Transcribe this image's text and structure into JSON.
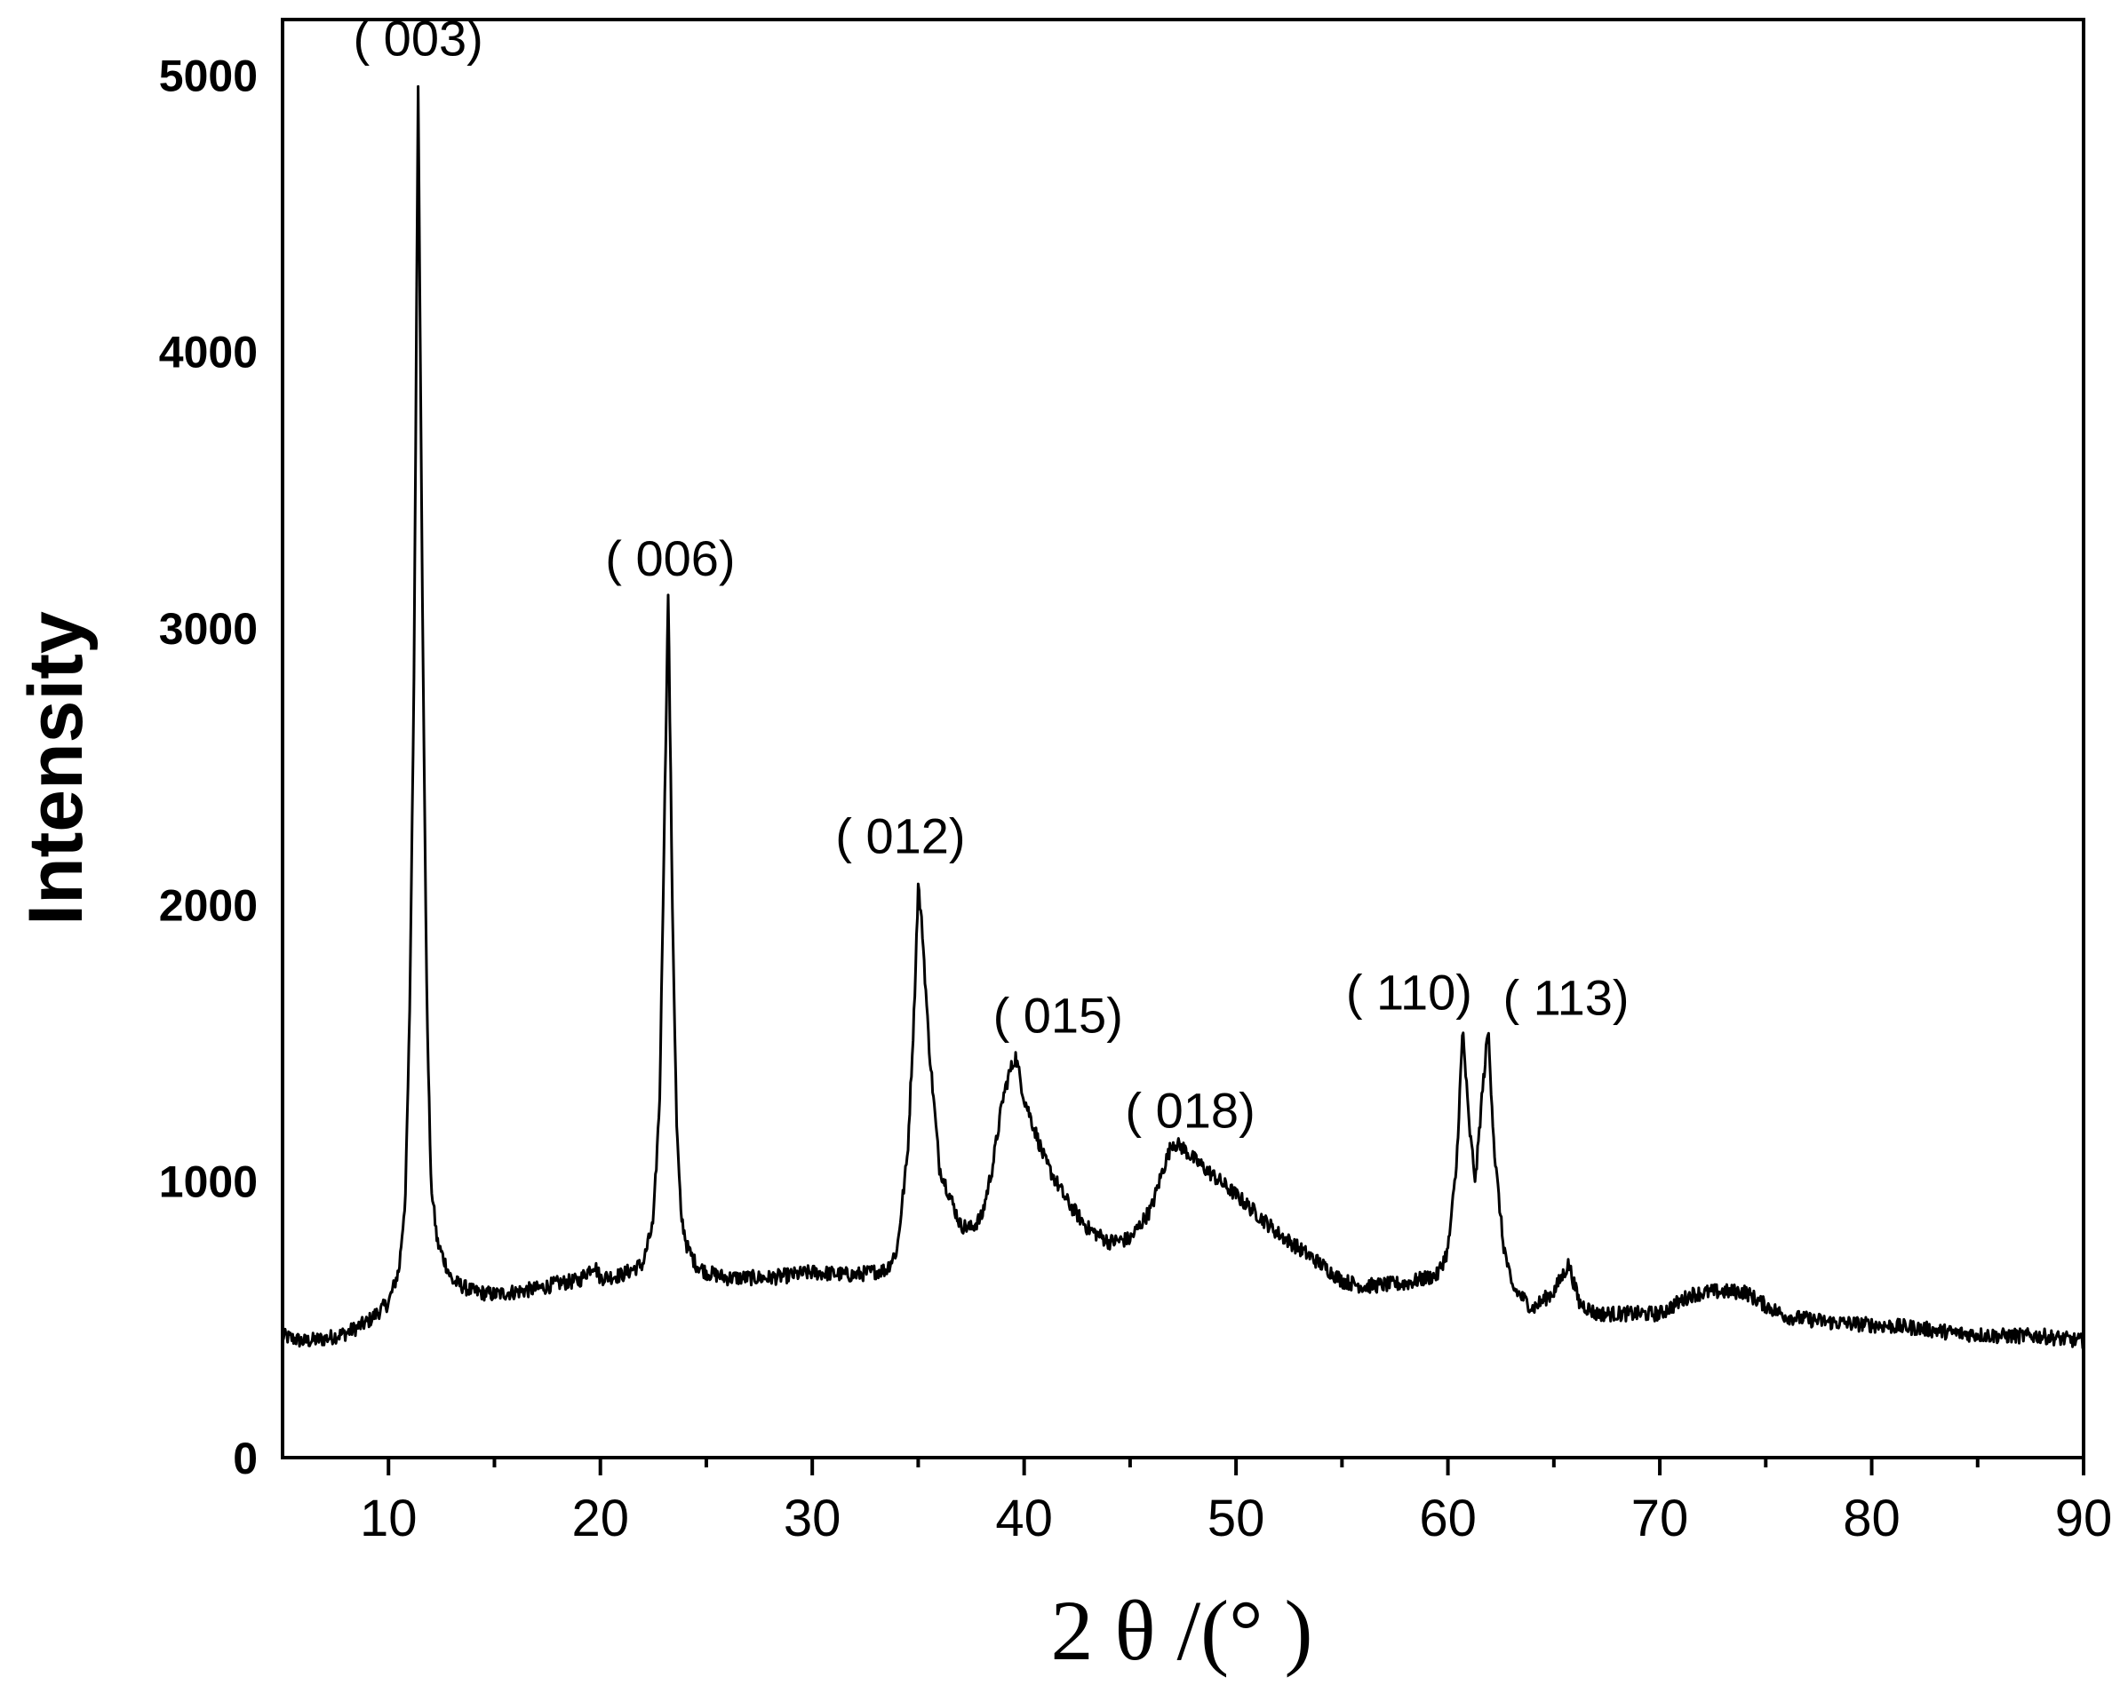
{
  "chart_data": {
    "type": "line",
    "title": "",
    "xlabel": "2 θ /(° )",
    "ylabel": "Intensity",
    "xlim": [
      5,
      90
    ],
    "ylim": [
      0,
      5200
    ],
    "x_ticks": [
      10,
      20,
      30,
      40,
      50,
      60,
      70,
      80,
      90
    ],
    "y_ticks": [
      0,
      1000,
      2000,
      3000,
      4000,
      5000
    ],
    "x_tick_labels": [
      "10",
      "20",
      "30",
      "40",
      "50",
      "60",
      "70",
      "80",
      "90"
    ],
    "y_tick_labels": [
      "0",
      "1000",
      "2000",
      "3000",
      "4000",
      "5000"
    ],
    "grid": false,
    "legend": "none",
    "line_color": "#000000",
    "series": [
      {
        "x": [
          5,
          6,
          7,
          8,
          9,
          10,
          10.5,
          10.8,
          11.0,
          11.2,
          11.4,
          11.6,
          11.8,
          12.0,
          12.3,
          12.7,
          13,
          14,
          15,
          16,
          17,
          18,
          19,
          19.7,
          20,
          21,
          22,
          22.5,
          22.8,
          23.0,
          23.2,
          23.4,
          23.6,
          23.8,
          24.1,
          24.5,
          25,
          26,
          28,
          30,
          32,
          33.5,
          34.0,
          34.5,
          34.8,
          35.0,
          35.2,
          35.5,
          36,
          37,
          37.5,
          38,
          38.5,
          39,
          39.3,
          39.6,
          40,
          41,
          42,
          43,
          44,
          45,
          46,
          46.5,
          47,
          47.5,
          48,
          50,
          52,
          54,
          55,
          56,
          58,
          59.5,
          60.0,
          60.4,
          60.7,
          61.0,
          61.3,
          61.6,
          61.9,
          62.2,
          62.6,
          63,
          64,
          65,
          65.7,
          66.2,
          67,
          70,
          71.5,
          72.5,
          74,
          75,
          76,
          78,
          80,
          82,
          84,
          86,
          88,
          90
        ],
        "y": [
          440,
          420,
          430,
          450,
          490,
          560,
          680,
          950,
          1600,
          2800,
          4980,
          3100,
          1700,
          1000,
          780,
          700,
          640,
          600,
          590,
          600,
          610,
          630,
          640,
          700,
          650,
          660,
          700,
          850,
          1300,
          2200,
          3130,
          2000,
          1200,
          880,
          760,
          700,
          670,
          650,
          650,
          670,
          660,
          680,
          750,
          1100,
          1600,
          2070,
          1900,
          1500,
          1050,
          840,
          830,
          870,
          1050,
          1300,
          1390,
          1450,
          1300,
          1070,
          930,
          830,
          780,
          790,
          900,
          1030,
          1140,
          1120,
          1080,
          950,
          810,
          700,
          640,
          620,
          630,
          660,
          750,
          1050,
          1550,
          1200,
          1000,
          1300,
          1550,
          1100,
          780,
          620,
          540,
          600,
          700,
          560,
          520,
          520,
          590,
          600,
          600,
          550,
          510,
          490,
          480,
          470,
          450,
          440,
          440,
          420
        ]
      }
    ],
    "annotations": [
      {
        "text": "(  003)",
        "x": 11.4,
        "y": 5000
      },
      {
        "text": "(  006)",
        "x": 23.3,
        "y": 3100
      },
      {
        "text": "(  012)",
        "x": 35.0,
        "y": 2090
      },
      {
        "text": "(  015)",
        "x": 39.5,
        "y": 1460
      },
      {
        "text": "(  018)",
        "x": 47.0,
        "y": 1110
      },
      {
        "text": "(  110)",
        "x": 60.6,
        "y": 1550
      },
      {
        "text": "(  113)",
        "x": 61.8,
        "y": 1530
      }
    ]
  }
}
